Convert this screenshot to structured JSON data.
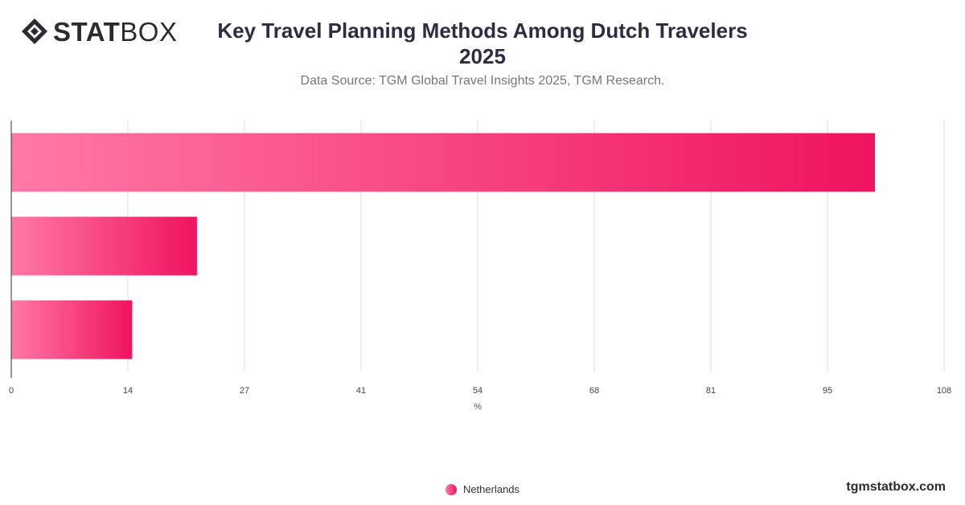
{
  "brand": {
    "logo_bold": "STAT",
    "logo_light": "BOX",
    "site": "tgmstatbox.com"
  },
  "chart_data": {
    "type": "bar",
    "orientation": "horizontal",
    "title": "Key Travel Planning Methods Among Dutch Travelers 2025",
    "subtitle": "Data Source: TGM Global Travel Insights 2025, TGM Research.",
    "xlabel": "%",
    "ylabel": "",
    "xlim": [
      0,
      108
    ],
    "xticks": [
      "0",
      "14",
      "27",
      "41",
      "54",
      "68",
      "81",
      "95",
      "108"
    ],
    "series": [
      {
        "name": "Netherlands",
        "values": [
          100,
          21.5,
          14
        ]
      }
    ],
    "grid": true,
    "legend_position": "bottom",
    "colors": {
      "bar_start": "#ff79a6",
      "bar_end": "#f0135f",
      "grid": "#dddddd",
      "axis": "#333333"
    }
  }
}
